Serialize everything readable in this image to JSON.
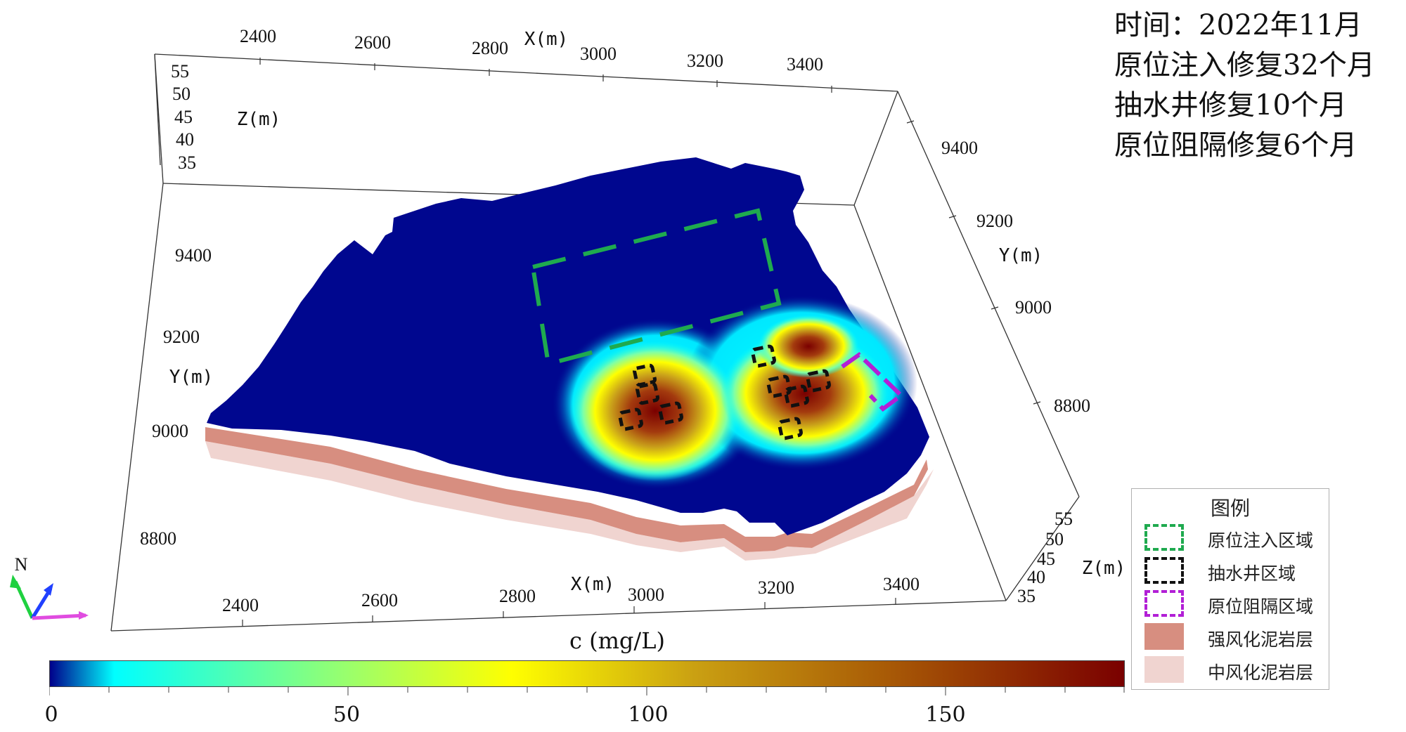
{
  "info": {
    "line1": "时间：2022年11月",
    "line2": "原位注入修复32个月",
    "line3": "抽水井修复10个月",
    "line4": "原位阻隔修复6个月"
  },
  "axes": {
    "x_top_label": "X(m)",
    "x_top_ticks": [
      "2400",
      "2600",
      "2800",
      "3000",
      "3200",
      "3400"
    ],
    "x_bottom_label": "X(m)",
    "x_bottom_ticks": [
      "2400",
      "2600",
      "2800",
      "3000",
      "3200",
      "3400"
    ],
    "y_left_label": "Y(m)",
    "y_left_ticks": [
      "9400",
      "9200",
      "9000",
      "8800"
    ],
    "y_right_label": "Y(m)",
    "y_right_ticks": [
      "9400",
      "9200",
      "9000",
      "8800"
    ],
    "z_left_label": "Z(m)",
    "z_left_ticks": [
      "55",
      "50",
      "45",
      "40",
      "35"
    ],
    "z_right_label": "Z(m)",
    "z_right_ticks": [
      "55",
      "50",
      "45",
      "40",
      "35"
    ],
    "north_label": "N"
  },
  "legend": {
    "title": "图例",
    "items": [
      {
        "label": "原位注入区域",
        "color": "#1faa4f",
        "style": "dashed"
      },
      {
        "label": "抽水井区域",
        "color": "#111111",
        "style": "dashed"
      },
      {
        "label": "原位阻隔区域",
        "color": "#b21fd6",
        "style": "dashed"
      },
      {
        "label": "强风化泥岩层",
        "color": "#d78e80",
        "style": "fill"
      },
      {
        "label": "中风化泥岩层",
        "color": "#f0d4d0",
        "style": "fill"
      }
    ]
  },
  "colorbar": {
    "title": "c (mg/L)",
    "min": 0,
    "max": 180,
    "ticks": [
      "0",
      "50",
      "100",
      "150"
    ],
    "colors": [
      "#00008b",
      "#00ffff",
      "#ffff00",
      "#b8860b",
      "#7a0000"
    ]
  },
  "colors": {
    "domain_base": "#00078f",
    "weathered_strong": "#d78e80",
    "weathered_medium": "#f0d4d0"
  }
}
